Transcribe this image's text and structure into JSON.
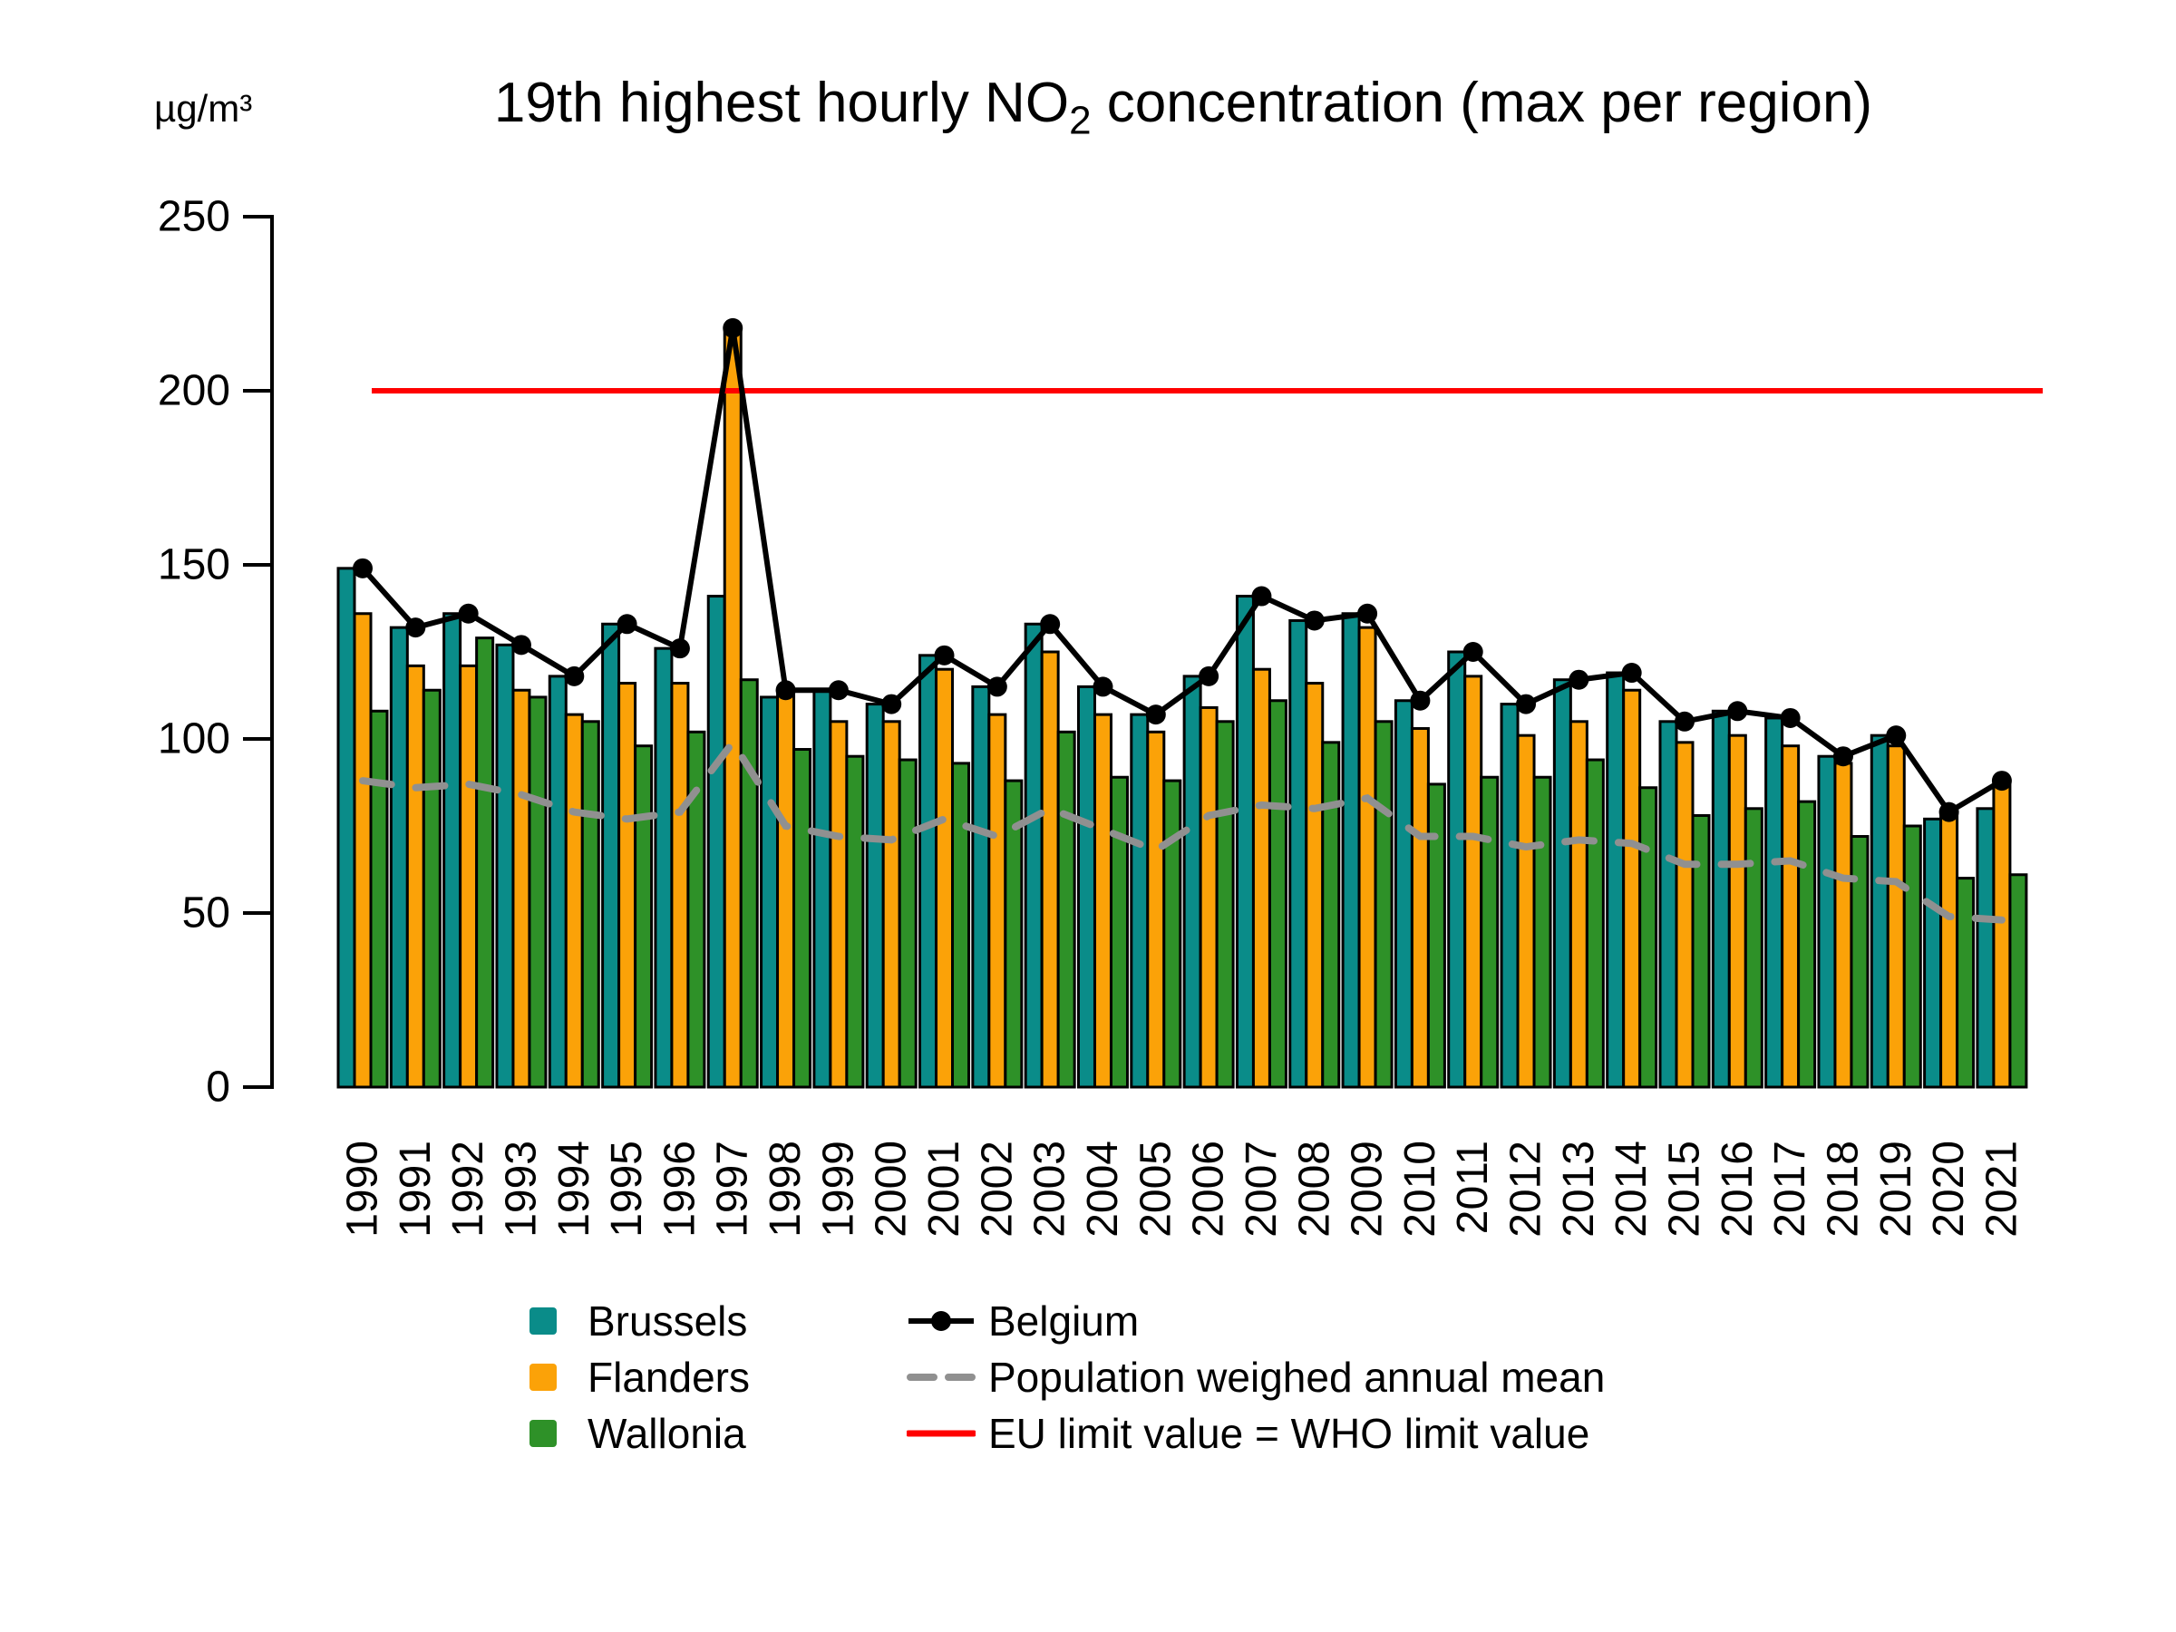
{
  "title": {
    "pre": "19th highest hourly NO",
    "sub": "2",
    "post": " concentration (max per region)"
  },
  "y_axis": {
    "unit_label": "µg/m³",
    "ticks": [
      0,
      50,
      100,
      150,
      200,
      250
    ],
    "ylim": [
      0,
      250
    ]
  },
  "legend": {
    "brussels": "Brussels",
    "flanders": "Flanders",
    "wallonia": "Wallonia",
    "belgium": "Belgium",
    "popmean": "Population weighed annual mean",
    "eu_limit": "EU limit value = WHO limit value"
  },
  "colors": {
    "brussels": "#0A8C89",
    "flanders": "#FBA208",
    "wallonia": "#2E9128",
    "belgium": "#000000",
    "popmean": "#909090",
    "eu_limit": "#FF0000"
  },
  "chart_data": {
    "type": "bar",
    "title": "19th highest hourly NO2 concentration (max per region)",
    "ylabel": "µg/m³",
    "xlabel": "",
    "ylim": [
      0,
      250
    ],
    "grid": false,
    "legend_position": "bottom",
    "categories": [
      "1990",
      "1991",
      "1992",
      "1993",
      "1994",
      "1995",
      "1996",
      "1997",
      "1998",
      "1999",
      "2000",
      "2001",
      "2002",
      "2003",
      "2004",
      "2005",
      "2006",
      "2007",
      "2008",
      "2009",
      "2010",
      "2011",
      "2012",
      "2013",
      "2014",
      "2015",
      "2016",
      "2017",
      "2018",
      "2019",
      "2020",
      "2021"
    ],
    "series": [
      {
        "name": "Brussels",
        "type": "bar",
        "color": "#0A8C89",
        "values": [
          149,
          132,
          136,
          127,
          118,
          133,
          126,
          141,
          112,
          114,
          110,
          124,
          115,
          133,
          115,
          107,
          118,
          141,
          134,
          136,
          111,
          125,
          110,
          117,
          119,
          105,
          108,
          106,
          95,
          101,
          77,
          80
        ]
      },
      {
        "name": "Flanders",
        "type": "bar",
        "color": "#FBA208",
        "values": [
          136,
          121,
          121,
          114,
          107,
          116,
          116,
          218,
          114,
          105,
          105,
          120,
          107,
          125,
          107,
          102,
          109,
          120,
          116,
          132,
          103,
          118,
          101,
          105,
          114,
          99,
          101,
          98,
          93,
          98,
          79,
          88
        ]
      },
      {
        "name": "Wallonia",
        "type": "bar",
        "color": "#2E9128",
        "values": [
          108,
          114,
          129,
          112,
          105,
          98,
          102,
          117,
          97,
          95,
          94,
          93,
          88,
          102,
          89,
          88,
          105,
          111,
          99,
          105,
          87,
          89,
          89,
          94,
          86,
          78,
          80,
          82,
          72,
          75,
          60,
          61
        ]
      },
      {
        "name": "Belgium",
        "type": "line",
        "marker": "circle",
        "color": "#000000",
        "values": [
          149,
          132,
          136,
          127,
          118,
          133,
          126,
          218,
          114,
          114,
          110,
          124,
          115,
          133,
          115,
          107,
          118,
          141,
          134,
          136,
          111,
          125,
          110,
          117,
          119,
          105,
          108,
          106,
          95,
          101,
          79,
          88
        ]
      },
      {
        "name": "Population weighed annual mean",
        "type": "dashed-line",
        "color": "#909090",
        "values": [
          88,
          86,
          87,
          84,
          79,
          77,
          79,
          99,
          75,
          72,
          71,
          77,
          72,
          80,
          74,
          68,
          78,
          81,
          80,
          83,
          72,
          72,
          69,
          71,
          70,
          64,
          64,
          65,
          60,
          59,
          49,
          48
        ]
      },
      {
        "name": "EU limit value = WHO limit value",
        "type": "hline",
        "color": "#FF0000",
        "value": 200
      }
    ]
  }
}
